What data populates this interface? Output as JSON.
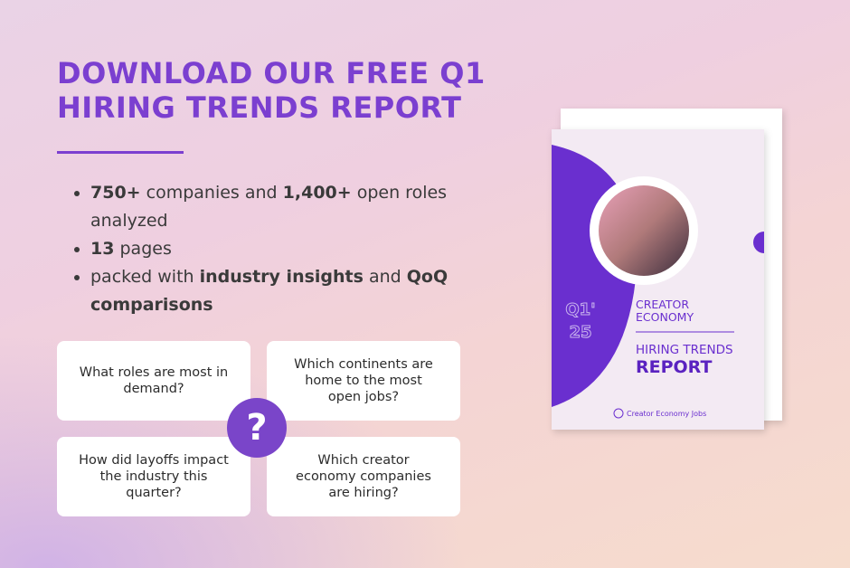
{
  "header": {
    "title_lines": [
      "DOWNLOAD OUR FREE Q1",
      "HIRING TRENDS REPORT"
    ]
  },
  "bullets": [
    {
      "parts": [
        {
          "text": "750+",
          "bold": true
        },
        {
          "text": " companies and ",
          "bold": false
        },
        {
          "text": "1,400+",
          "bold": true
        },
        {
          "text": " open roles analyzed",
          "bold": false
        }
      ]
    },
    {
      "parts": [
        {
          "text": "13",
          "bold": true
        },
        {
          "text": " pages",
          "bold": false
        }
      ]
    },
    {
      "parts": [
        {
          "text": "packed with ",
          "bold": false
        },
        {
          "text": "industry insights",
          "bold": true
        },
        {
          "text": " and ",
          "bold": false
        },
        {
          "text": "QoQ comparisons",
          "bold": true
        }
      ]
    }
  ],
  "questions": [
    "What roles are most in demand?",
    "Which continents are home to the most open jobs?",
    "How did layoffs impact the industry this quarter?",
    "Which creator economy companies are hiring?"
  ],
  "question_icon": "?",
  "report_cover": {
    "quarter": "Q1'",
    "year": "25",
    "subtitle_lines": [
      "CREATOR",
      "ECONOMY"
    ],
    "title_line": "HIRING TRENDS",
    "title_bold": "REPORT",
    "brand": "Creator Economy Jobs"
  }
}
